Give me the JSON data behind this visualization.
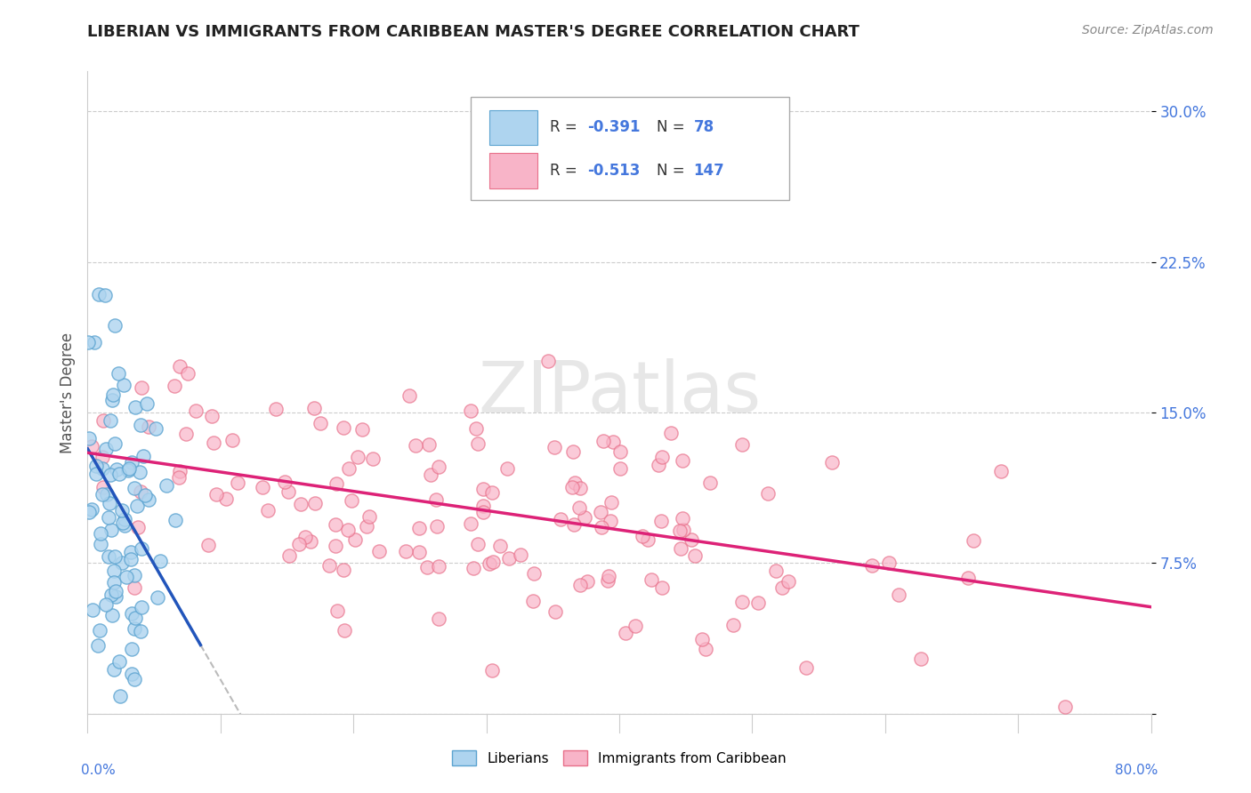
{
  "title": "LIBERIAN VS IMMIGRANTS FROM CARIBBEAN MASTER'S DEGREE CORRELATION CHART",
  "source": "Source: ZipAtlas.com",
  "ylabel": "Master's Degree",
  "xlim": [
    0.0,
    80.0
  ],
  "ylim": [
    0.0,
    32.0
  ],
  "ytick_vals": [
    0.0,
    7.5,
    15.0,
    22.5,
    30.0
  ],
  "ytick_labels": [
    "",
    "7.5%",
    "15.0%",
    "22.5%",
    "30.0%"
  ],
  "legend_line1": "R = -0.391   N =  78",
  "legend_line2": "R = -0.513   N = 147",
  "blue_face": "#aed4ef",
  "blue_edge": "#5ba3d0",
  "pink_face": "#f8b4c8",
  "pink_edge": "#e8708a",
  "line_blue": "#2255bb",
  "line_pink": "#dd2277",
  "line_dash": "#bbbbbb",
  "watermark_text": "ZIPatlas",
  "title_color": "#222222",
  "source_color": "#888888",
  "tick_label_color": "#4477dd",
  "ylabel_color": "#555555",
  "grid_color": "#cccccc"
}
